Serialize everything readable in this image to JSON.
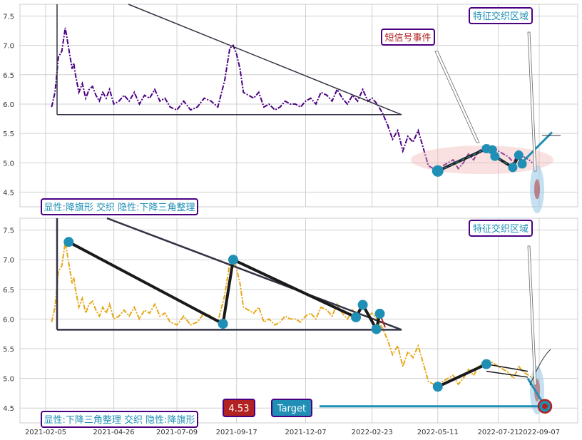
{
  "chart_data": [
    {
      "type": "line",
      "panel": "top",
      "ylim": [
        4.25,
        7.7
      ],
      "yticks": [
        "7.5",
        "7.0",
        "6.5",
        "6.0",
        "5.5",
        "5.0",
        "4.5"
      ],
      "grid": true,
      "series_color": "#4b0082",
      "series": [
        {
          "x": [
            "2021-02-12",
            "2021-02-16",
            "2021-02-20",
            "2021-02-24",
            "2021-02-28",
            "2021-03-04",
            "2021-03-08",
            "2021-03-10",
            "2021-03-12",
            "2021-03-16",
            "2021-03-20",
            "2021-03-24",
            "2021-03-28",
            "2021-04-01",
            "2021-04-05",
            "2021-04-09",
            "2021-04-13",
            "2021-04-17",
            "2021-04-21",
            "2021-04-26",
            "2021-05-02",
            "2021-05-08",
            "2021-05-14",
            "2021-05-20",
            "2021-05-26",
            "2021-06-01",
            "2021-06-07",
            "2021-06-13",
            "2021-06-19",
            "2021-06-25",
            "2021-07-01",
            "2021-07-09",
            "2021-07-17",
            "2021-07-25",
            "2021-08-02",
            "2021-08-10",
            "2021-08-18",
            "2021-08-26",
            "2021-09-03",
            "2021-09-09",
            "2021-09-13",
            "2021-09-17",
            "2021-09-21",
            "2021-09-25",
            "2021-10-01",
            "2021-10-07",
            "2021-10-13",
            "2021-10-19",
            "2021-10-25",
            "2021-11-01",
            "2021-11-07",
            "2021-11-13",
            "2021-11-19",
            "2021-11-25",
            "2021-12-01",
            "2021-12-07",
            "2021-12-13",
            "2021-12-19",
            "2021-12-25",
            "2022-01-01",
            "2022-01-07",
            "2022-01-13",
            "2022-01-19",
            "2022-01-25",
            "2022-01-31",
            "2022-02-06",
            "2022-02-12",
            "2022-02-18",
            "2022-02-23",
            "2022-03-01",
            "2022-03-07",
            "2022-03-13",
            "2022-03-19",
            "2022-03-25",
            "2022-03-31",
            "2022-04-06",
            "2022-04-12",
            "2022-04-18",
            "2022-04-24",
            "2022-04-30",
            "2022-05-06",
            "2022-05-11",
            "2022-05-17",
            "2022-05-23",
            "2022-05-29",
            "2022-06-04",
            "2022-06-10",
            "2022-06-16",
            "2022-06-22",
            "2022-06-28",
            "2022-07-04",
            "2022-07-10",
            "2022-07-16",
            "2022-07-21",
            "2022-07-27",
            "2022-08-02",
            "2022-08-08",
            "2022-08-14",
            "2022-08-20",
            "2022-08-26",
            "2022-08-30"
          ],
          "y": [
            5.95,
            6.2,
            6.8,
            6.9,
            7.3,
            6.95,
            6.6,
            6.7,
            6.5,
            6.2,
            6.35,
            6.1,
            6.25,
            6.3,
            6.15,
            6.05,
            6.2,
            6.1,
            6.25,
            6.0,
            6.05,
            6.15,
            6.05,
            6.2,
            6.0,
            6.15,
            6.1,
            6.25,
            6.05,
            6.1,
            5.95,
            5.9,
            6.05,
            5.9,
            5.95,
            6.1,
            6.05,
            5.95,
            6.4,
            6.95,
            7.0,
            6.85,
            6.6,
            6.2,
            6.15,
            6.1,
            6.2,
            5.95,
            6.0,
            5.9,
            5.95,
            6.05,
            6.0,
            6.0,
            5.95,
            6.05,
            6.1,
            6.0,
            6.2,
            6.15,
            6.05,
            6.25,
            6.1,
            6.0,
            6.15,
            6.05,
            6.25,
            6.05,
            6.1,
            6.0,
            5.85,
            5.65,
            5.4,
            5.55,
            5.2,
            5.45,
            5.35,
            5.55,
            5.25,
            4.95,
            4.9,
            4.85,
            4.95,
            5.0,
            5.05,
            4.9,
            5.0,
            5.15,
            5.05,
            5.2,
            5.25,
            5.3,
            5.25,
            5.2,
            5.15,
            5.1,
            5.0,
            5.2,
            5.1,
            5.05,
            5.0
          ]
        }
      ],
      "annotations": [
        {
          "text": "特征交织区域",
          "color": "#1f8fb5"
        },
        {
          "text": "短信号事件",
          "color": "#b22222"
        },
        {
          "text": "显性:降旗形 交织 隐性:下降三角整理",
          "color": "#1f8fb5"
        }
      ]
    },
    {
      "type": "line",
      "panel": "bottom",
      "ylim": [
        4.25,
        7.7
      ],
      "yticks": [
        "7.5",
        "7.0",
        "6.5",
        "6.0",
        "5.5",
        "5.0",
        "4.5"
      ],
      "xticks": [
        "2021-02-05",
        "2021-04-26",
        "2021-07-09",
        "2021-09-17",
        "2021-12-07",
        "2022-02-23",
        "2022-05-11",
        "2022-07-21",
        "2022-09-07"
      ],
      "grid": true,
      "series_color": "#e6a817",
      "pattern_points": [
        {
          "x": "2021-03-04",
          "y": 7.3
        },
        {
          "x": "2021-09-01",
          "y": 5.92
        },
        {
          "x": "2021-09-13",
          "y": 7.0
        },
        {
          "x": "2022-02-04",
          "y": 6.03
        },
        {
          "x": "2022-02-12",
          "y": 6.24
        },
        {
          "x": "2022-02-28",
          "y": 5.83
        },
        {
          "x": "2022-03-04",
          "y": 6.09
        },
        {
          "x": "2022-05-11",
          "y": 4.86
        },
        {
          "x": "2022-07-07",
          "y": 5.24
        },
        {
          "x": "2022-08-30",
          "y": 4.52
        }
      ],
      "annotations": [
        {
          "text": "特征交织区域",
          "color": "#1f8fb5"
        },
        {
          "text": "显性:下降三角整理 交织 隐性:降旗形",
          "color": "#1f8fb5"
        },
        {
          "text": "4.53",
          "color": "#b22222"
        },
        {
          "text": "Target",
          "color": "#1f8fb5"
        }
      ]
    }
  ],
  "labels": {
    "top_zone": "特征交织区域",
    "top_signal": "短信号事件",
    "top_pattern": "显性:降旗形 交织 隐性:下降三角整理",
    "bottom_zone": "特征交织区域",
    "bottom_pattern": "显性:下降三角整理 交织 隐性:降旗形",
    "price_badge": "4.53",
    "target_badge": "Target"
  },
  "colors": {
    "grid": "#d0d0d0",
    "accent": "#1f8fb5",
    "signal": "#b22222",
    "frame": "#4b0082",
    "trend": "#333344"
  }
}
